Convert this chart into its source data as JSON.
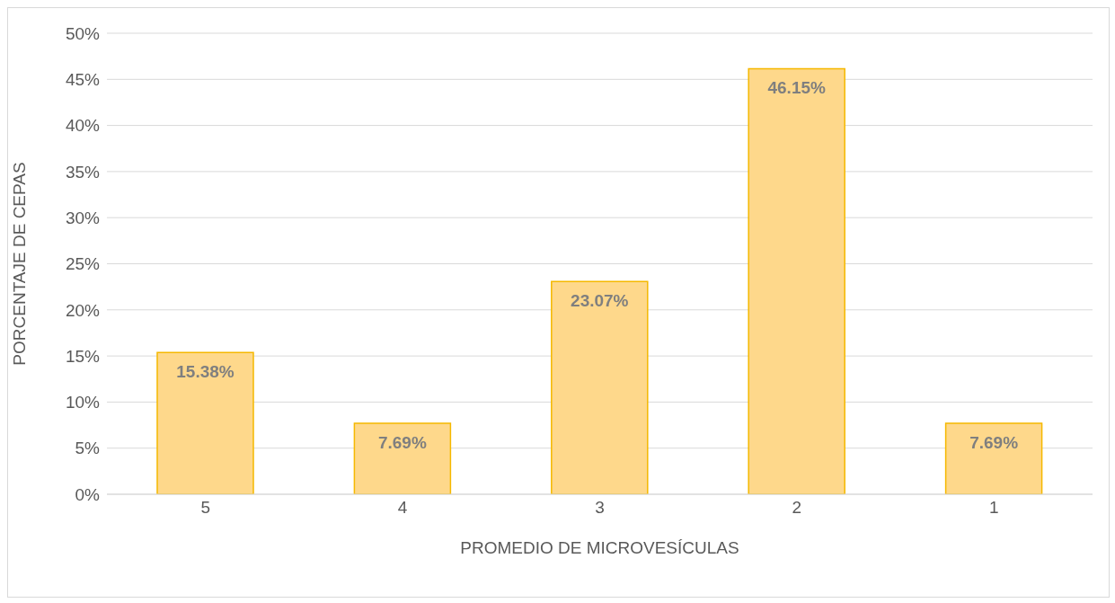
{
  "chart_data": {
    "type": "bar",
    "xlabel": "PROMEDIO DE MICROVESÍCULAS",
    "ylabel": "PORCENTAJE DE CEPAS",
    "categories": [
      "5",
      "4",
      "3",
      "2",
      "1"
    ],
    "values": [
      15.38,
      7.69,
      23.07,
      46.15,
      7.69
    ],
    "value_labels": [
      "15.38%",
      "7.69%",
      "23.07%",
      "46.15%",
      "7.69%"
    ],
    "color": "#fed88b",
    "ylim": [
      0,
      50
    ],
    "yticks": [
      {
        "value": 0,
        "label": "0%"
      },
      {
        "value": 5,
        "label": "5%"
      },
      {
        "value": 10,
        "label": "10%"
      },
      {
        "value": 15,
        "label": "15%"
      },
      {
        "value": 20,
        "label": "20%"
      },
      {
        "value": 25,
        "label": "25%"
      },
      {
        "value": 30,
        "label": "30%"
      },
      {
        "value": 35,
        "label": "35%"
      },
      {
        "value": 40,
        "label": "40%"
      },
      {
        "value": 45,
        "label": "45%"
      },
      {
        "value": 50,
        "label": "50%"
      }
    ],
    "grid": "y"
  }
}
